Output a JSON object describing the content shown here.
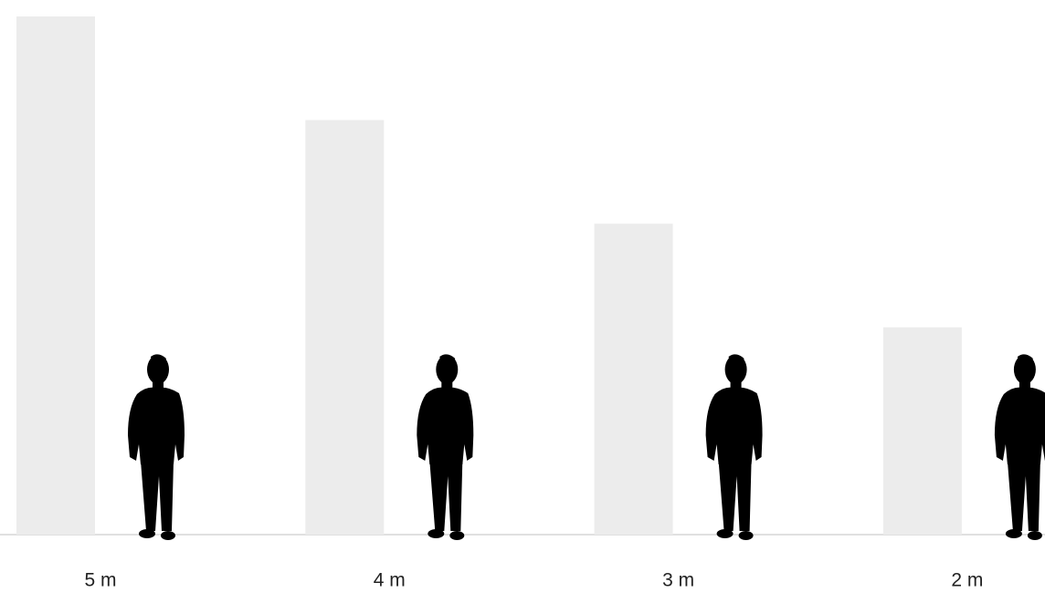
{
  "chart_data": {
    "type": "bar",
    "categories": [
      "5 m",
      "4 m",
      "3 m",
      "2 m"
    ],
    "values": [
      5,
      4,
      3,
      2
    ],
    "color": "#ececec",
    "ylim": [
      0,
      5
    ]
  }
}
